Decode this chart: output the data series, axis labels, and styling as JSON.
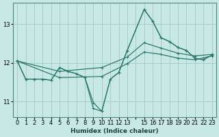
{
  "xlabel": "Humidex (Indice chaleur)",
  "bg_color": "#c8e8e6",
  "grid_color": "#a8ccca",
  "line_color": "#2a7a6a",
  "xlim": [
    -0.5,
    23.5
  ],
  "ylim": [
    10.6,
    13.55
  ],
  "yticks": [
    11,
    12,
    13
  ],
  "xtick_vals": [
    0,
    1,
    2,
    3,
    4,
    5,
    6,
    7,
    8,
    9,
    10,
    11,
    12,
    13,
    14,
    15,
    16,
    17,
    18,
    19,
    20,
    21,
    22,
    23
  ],
  "xtick_labels": [
    "0",
    "1",
    "2",
    "3",
    "4",
    "5",
    "6",
    "7",
    "8",
    "9",
    "10",
    "11",
    "12",
    "13",
    "",
    "15",
    "16",
    "17",
    "18",
    "19",
    "20",
    "21",
    "22",
    "23"
  ],
  "curves": [
    {
      "x": [
        0,
        1,
        2,
        3,
        4,
        5,
        6,
        7,
        8,
        9,
        10,
        11,
        12,
        13,
        15,
        16,
        17,
        18,
        19,
        20,
        21,
        22,
        23
      ],
      "y": [
        12.05,
        11.58,
        11.58,
        11.58,
        11.55,
        11.88,
        11.78,
        11.72,
        11.62,
        10.82,
        10.75,
        11.58,
        11.75,
        12.32,
        13.38,
        13.08,
        12.65,
        12.55,
        12.4,
        12.32,
        12.12,
        12.08,
        12.2
      ]
    },
    {
      "x": [
        0,
        1,
        2,
        3,
        4,
        5,
        6,
        7,
        8,
        9,
        10,
        11,
        12,
        13,
        15,
        16,
        17,
        18,
        19,
        20,
        21,
        22,
        23
      ],
      "y": [
        12.05,
        11.58,
        11.58,
        11.58,
        11.55,
        11.88,
        11.78,
        11.72,
        11.62,
        10.97,
        10.75,
        11.58,
        11.75,
        12.32,
        13.38,
        13.08,
        12.65,
        12.55,
        12.4,
        12.32,
        12.12,
        12.08,
        12.2
      ]
    },
    {
      "x": [
        0,
        5,
        10,
        13,
        15,
        17,
        19,
        21,
        23
      ],
      "y": [
        12.05,
        11.78,
        11.88,
        12.15,
        12.52,
        12.38,
        12.25,
        12.18,
        12.22
      ]
    },
    {
      "x": [
        0,
        5,
        10,
        13,
        15,
        17,
        19,
        21,
        23
      ],
      "y": [
        12.05,
        11.62,
        11.65,
        11.98,
        12.28,
        12.22,
        12.12,
        12.08,
        12.18
      ]
    }
  ]
}
